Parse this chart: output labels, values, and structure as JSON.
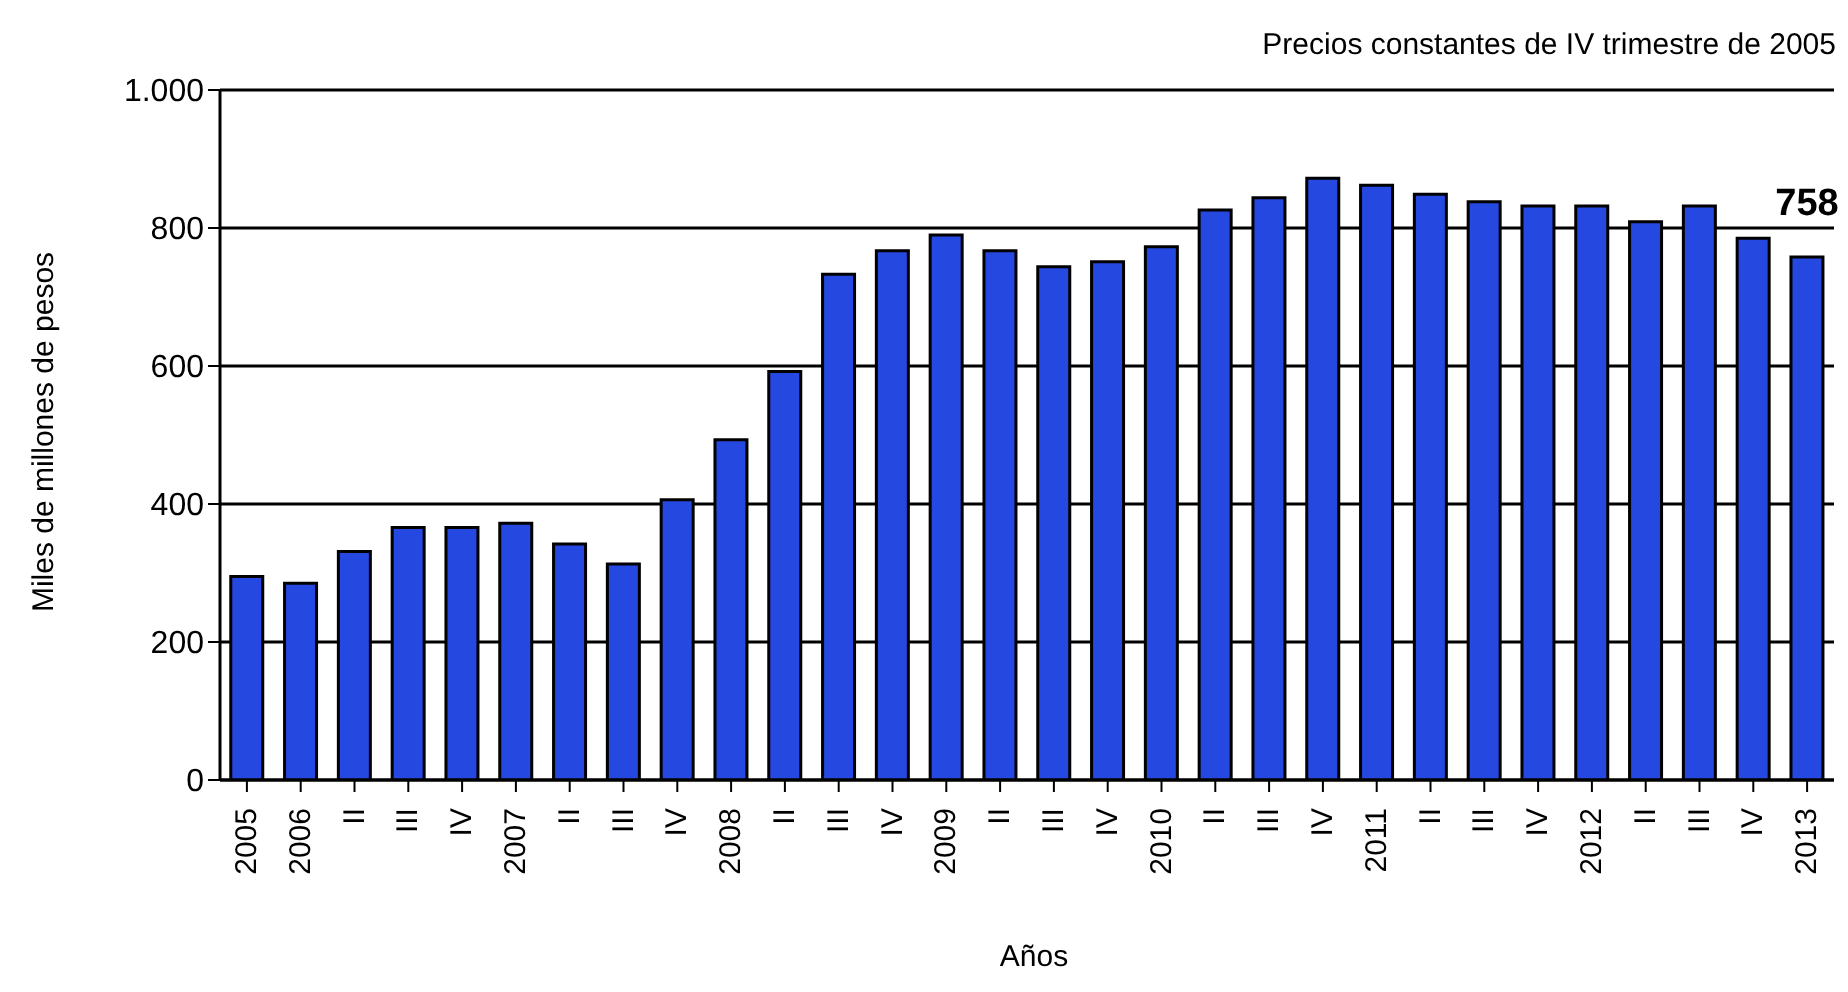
{
  "chart_data": {
    "type": "bar",
    "title": "Precios constantes de IV trimestre de 2005",
    "xlabel": "Años",
    "ylabel": "Miles de millones de pesos",
    "categories": [
      "2005",
      "2006",
      "II",
      "III",
      "IV",
      "2007",
      "II",
      "III",
      "IV",
      "2008",
      "II",
      "III",
      "IV",
      "2009",
      "II",
      "III",
      "IV",
      "2010",
      "II",
      "III",
      "IV",
      "2011",
      "II",
      "III",
      "IV",
      "2012",
      "II",
      "III",
      "IV",
      "2013"
    ],
    "values": [
      295,
      285,
      331,
      366,
      366,
      372,
      342,
      313,
      406,
      493,
      592,
      733,
      767,
      790,
      767,
      744,
      751,
      773,
      826,
      844,
      872,
      862,
      849,
      838,
      832,
      832,
      809,
      832,
      785,
      758
    ],
    "value_labels": [
      null,
      null,
      null,
      null,
      null,
      null,
      null,
      null,
      null,
      null,
      null,
      null,
      null,
      null,
      null,
      null,
      null,
      null,
      null,
      null,
      null,
      null,
      null,
      null,
      null,
      null,
      null,
      null,
      null,
      "758"
    ],
    "color": "#2448e0",
    "ylim": [
      0,
      1000
    ],
    "yticks": [
      0,
      200,
      400,
      600,
      800,
      {
        "value": 1000,
        "label": "1.000"
      }
    ],
    "grid": "y",
    "legend": false
  }
}
